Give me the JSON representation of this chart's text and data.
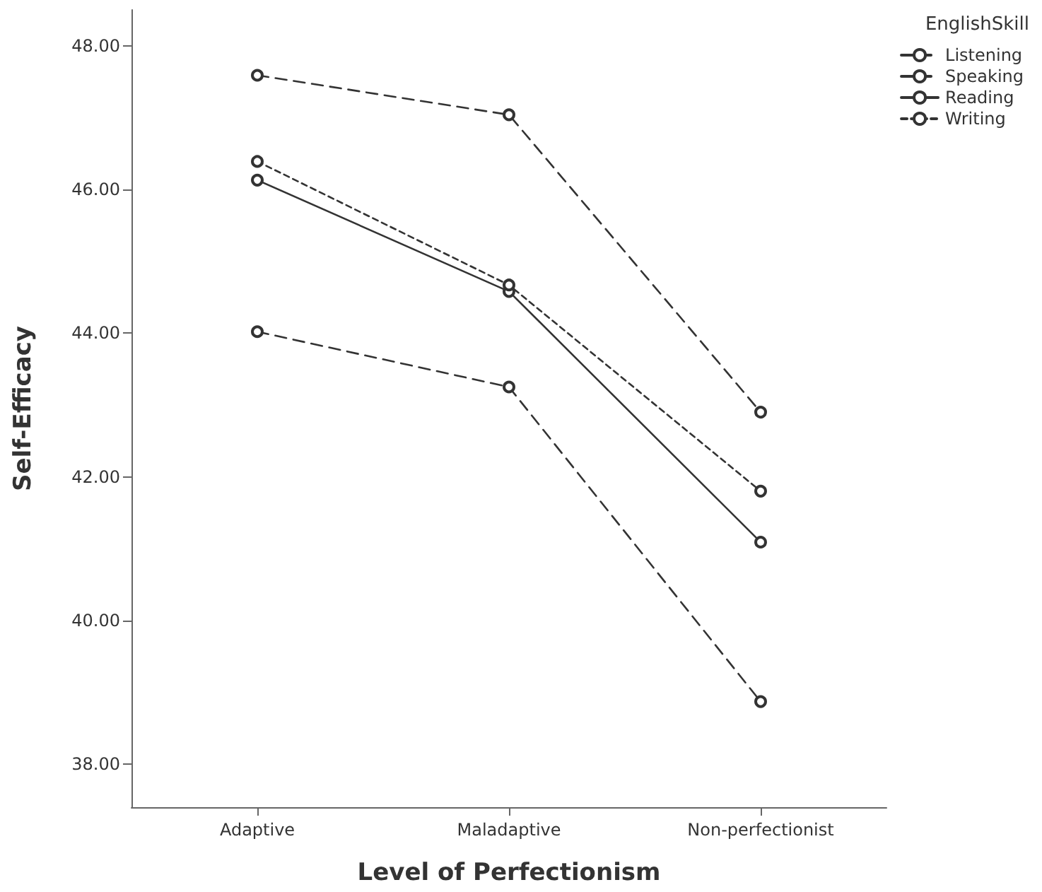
{
  "chart_data": {
    "type": "line",
    "xlabel": "Level of Perfectionism",
    "ylabel": "Self-Efficacy",
    "legend_title": "EnglishSkill",
    "legend": "top right",
    "marker": "circle",
    "grid": false,
    "categories": [
      "Adaptive",
      "Maladaptive",
      "Non-perfectionist"
    ],
    "ylim": [
      37.4,
      48.5
    ],
    "yticks": [
      {
        "value": 38,
        "label": "38.00"
      },
      {
        "value": 40,
        "label": "40.00"
      },
      {
        "value": 42,
        "label": "42.00"
      },
      {
        "value": 44,
        "label": "44.00"
      },
      {
        "value": 46,
        "label": "46.00"
      },
      {
        "value": 48,
        "label": "48.00"
      }
    ],
    "series": [
      {
        "name": "Listening",
        "color": "#333333",
        "line_style": "dashed",
        "values": [
          44.02,
          43.25,
          38.87
        ]
      },
      {
        "name": "Speaking",
        "color": "#333333",
        "line_style": "dashed",
        "values": [
          47.59,
          47.04,
          42.9
        ]
      },
      {
        "name": "Reading",
        "color": "#333333",
        "line_style": "solid",
        "values": [
          46.13,
          44.58,
          41.09
        ]
      },
      {
        "name": "Writing",
        "color": "#333333",
        "line_style": "dotted",
        "values": [
          46.39,
          44.67,
          41.8
        ]
      }
    ]
  }
}
